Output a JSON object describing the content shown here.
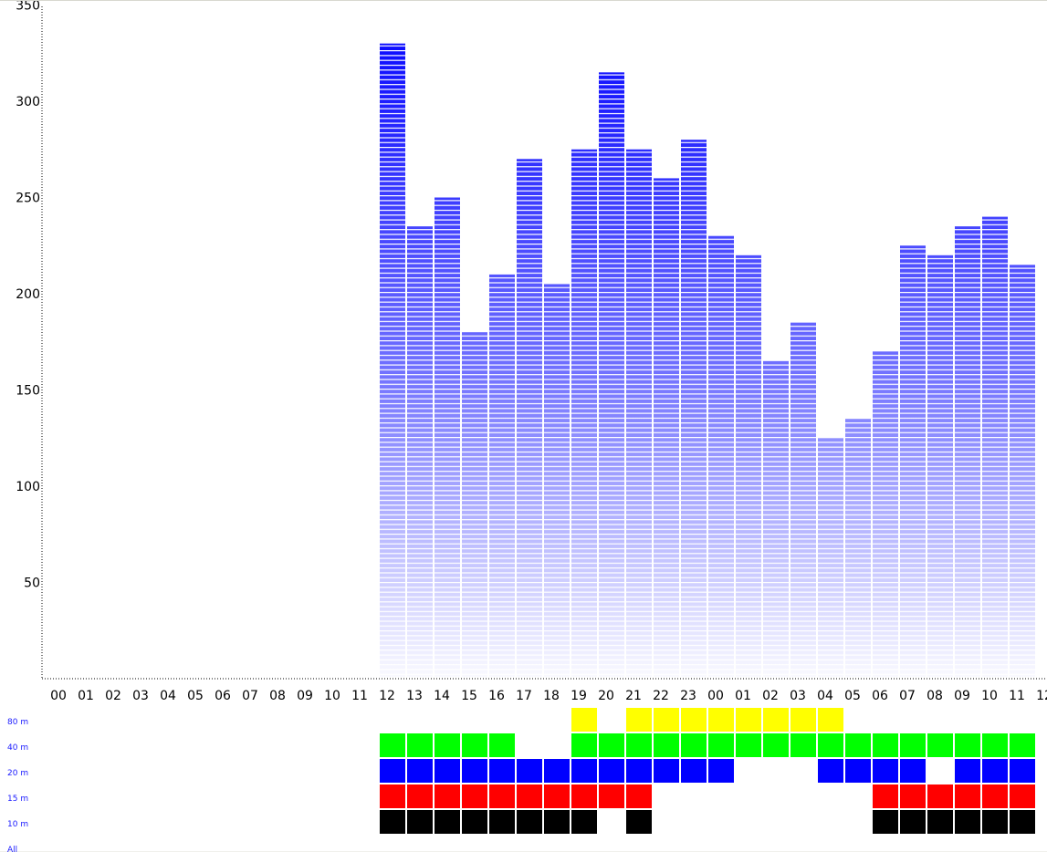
{
  "chart_data": {
    "type": "bar",
    "title": "",
    "xlabel": "",
    "ylabel": "",
    "ylim": [
      0,
      350
    ],
    "yticks": [
      "50",
      "100",
      "150",
      "200",
      "250",
      "300",
      "350"
    ],
    "x_tick_labels": [
      "00",
      "01",
      "02",
      "03",
      "04",
      "05",
      "06",
      "07",
      "08",
      "09",
      "10",
      "11",
      "12",
      "13",
      "14",
      "15",
      "16",
      "17",
      "18",
      "19",
      "20",
      "21",
      "22",
      "23",
      "00",
      "01",
      "02",
      "03",
      "04",
      "05",
      "06",
      "07",
      "08",
      "09",
      "10",
      "11",
      "12"
    ],
    "categories": [
      "12",
      "13",
      "14",
      "15",
      "16",
      "17",
      "18",
      "19",
      "20",
      "21",
      "22",
      "23",
      "00",
      "01",
      "02",
      "03",
      "04",
      "05",
      "06",
      "07",
      "08",
      "09",
      "10",
      "11"
    ],
    "values": [
      330,
      235,
      250,
      180,
      210,
      270,
      205,
      275,
      315,
      275,
      260,
      280,
      230,
      220,
      165,
      185,
      125,
      135,
      170,
      225,
      220,
      235,
      240,
      215
    ],
    "bar_color": "#0000ff",
    "grid": false,
    "bands": {
      "labels": [
        "80 m",
        "40 m",
        "20 m",
        "15 m",
        "10 m",
        "All"
      ],
      "colors": [
        "#ffff00",
        "#00ff00",
        "#0000ff",
        "#ff0000",
        "#000000"
      ],
      "activity": [
        [
          0,
          0,
          0,
          0,
          0,
          0,
          0,
          1,
          0,
          1,
          1,
          1,
          1,
          1,
          1,
          1,
          1,
          0,
          0,
          0,
          0,
          0,
          0,
          0
        ],
        [
          1,
          1,
          1,
          1,
          1,
          0,
          0,
          1,
          1,
          1,
          1,
          1,
          1,
          1,
          1,
          1,
          1,
          1,
          1,
          1,
          1,
          1,
          1,
          1
        ],
        [
          1,
          1,
          1,
          1,
          1,
          1,
          1,
          1,
          1,
          1,
          1,
          1,
          1,
          0,
          0,
          0,
          1,
          1,
          1,
          1,
          0,
          1,
          1,
          1
        ],
        [
          1,
          1,
          1,
          1,
          1,
          1,
          1,
          1,
          1,
          1,
          0,
          0,
          0,
          0,
          0,
          0,
          0,
          0,
          1,
          1,
          1,
          1,
          1,
          1
        ],
        [
          1,
          1,
          1,
          1,
          1,
          1,
          1,
          1,
          0,
          1,
          0,
          0,
          0,
          0,
          0,
          0,
          0,
          0,
          1,
          1,
          1,
          1,
          1,
          1
        ]
      ]
    }
  }
}
